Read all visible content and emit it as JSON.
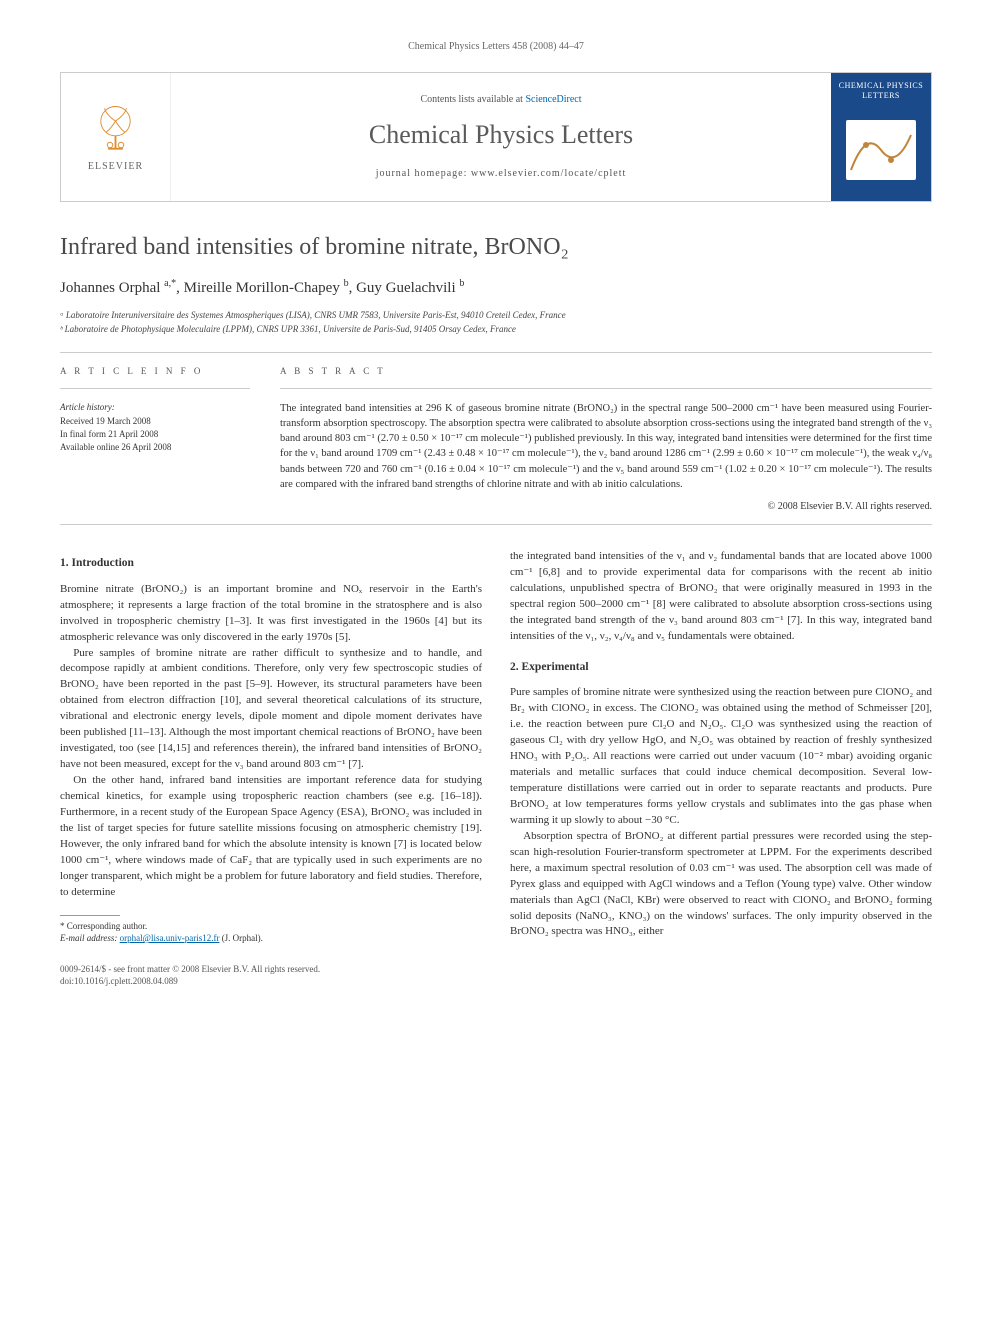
{
  "page_header": "Chemical Physics Letters 458 (2008) 44–47",
  "banner": {
    "publisher_label": "ELSEVIER",
    "contents_prefix": "Contents lists available at ",
    "contents_link": "ScienceDirect",
    "journal_name": "Chemical Physics Letters",
    "homepage_label": "journal homepage: www.elsevier.com/locate/cplett",
    "cover_title": "CHEMICAL PHYSICS LETTERS"
  },
  "article": {
    "title": "Infrared band intensities of bromine nitrate, BrONO₂",
    "authors_html": "Johannes Orphal <sup>a,*</sup>, Mireille Morillon-Chapey <sup>b</sup>, Guy Guelachvili <sup>b</sup>",
    "affiliations": [
      "ᵃ Laboratoire Interuniversitaire des Systemes Atmospheriques (LISA), CNRS UMR 7583, Universite Paris-Est, 94010 Creteil Cedex, France",
      "ᵇ Laboratoire de Photophysique Moleculaire (LPPM), CNRS UPR 3361, Universite de Paris-Sud, 91405 Orsay Cedex, France"
    ]
  },
  "info": {
    "heading": "A R T I C L E   I N F O",
    "history_label": "Article history:",
    "received": "Received 19 March 2008",
    "final_form": "In final form 21 April 2008",
    "online": "Available online 26 April 2008"
  },
  "abstract": {
    "heading": "A B S T R A C T",
    "text": "The integrated band intensities at 296 K of gaseous bromine nitrate (BrONO₂) in the spectral range 500–2000 cm⁻¹ have been measured using Fourier-transform absorption spectroscopy. The absorption spectra were calibrated to absolute absorption cross-sections using the integrated band strength of the ν₃ band around 803 cm⁻¹ (2.70 ± 0.50 × 10⁻¹⁷ cm molecule⁻¹) published previously. In this way, integrated band intensities were determined for the first time for the ν₁ band around 1709 cm⁻¹ (2.43 ± 0.48 × 10⁻¹⁷ cm molecule⁻¹), the ν₂ band around 1286 cm⁻¹ (2.99 ± 0.60 × 10⁻¹⁷ cm molecule⁻¹), the weak ν₄/ν₈ bands between 720 and 760 cm⁻¹ (0.16 ± 0.04 × 10⁻¹⁷ cm molecule⁻¹) and the ν₅ band around 559 cm⁻¹ (1.02 ± 0.20 × 10⁻¹⁷ cm molecule⁻¹). The results are compared with the infrared band strengths of chlorine nitrate and with ab initio calculations.",
    "copyright": "© 2008 Elsevier B.V. All rights reserved."
  },
  "sections": {
    "s1_head": "1. Introduction",
    "s1_p1": "Bromine nitrate (BrONO₂) is an important bromine and NOₓ reservoir in the Earth's atmosphere; it represents a large fraction of the total bromine in the stratosphere and is also involved in tropospheric chemistry [1–3]. It was first investigated in the 1960s [4] but its atmospheric relevance was only discovered in the early 1970s [5].",
    "s1_p2": "Pure samples of bromine nitrate are rather difficult to synthesize and to handle, and decompose rapidly at ambient conditions. Therefore, only very few spectroscopic studies of BrONO₂ have been reported in the past [5–9]. However, its structural parameters have been obtained from electron diffraction [10], and several theoretical calculations of its structure, vibrational and electronic energy levels, dipole moment and dipole moment derivates have been published [11–13]. Although the most important chemical reactions of BrONO₂ have been investigated, too (see [14,15] and references therein), the infrared band intensities of BrONO₂ have not been measured, except for the ν₃ band around 803 cm⁻¹ [7].",
    "s1_p3": "On the other hand, infrared band intensities are important reference data for studying chemical kinetics, for example using tropospheric reaction chambers (see e.g. [16–18]). Furthermore, in a recent study of the European Space Agency (ESA), BrONO₂ was included in the list of target species for future satellite missions focusing on atmospheric chemistry [19]. However, the only infrared band for which the absolute intensity is known [7] is located below 1000 cm⁻¹, where windows made of CaF₂ that are typically used in such experiments are no longer transparent, which might be a problem for future laboratory and field studies. Therefore, to determine",
    "s1_p3b": "the integrated band intensities of the ν₁ and ν₂ fundamental bands that are located above 1000 cm⁻¹ [6,8] and to provide experimental data for comparisons with the recent ab initio calculations, unpublished spectra of BrONO₂ that were originally measured in 1993 in the spectral region 500–2000 cm⁻¹ [8] were calibrated to absolute absorption cross-sections using the integrated band strength of the ν₃ band around 803 cm⁻¹ [7]. In this way, integrated band intensities of the ν₁, ν₂, ν₄/ν₈ and ν₅ fundamentals were obtained.",
    "s2_head": "2. Experimental",
    "s2_p1": "Pure samples of bromine nitrate were synthesized using the reaction between pure ClONO₂ and Br₂ with ClONO₂ in excess. The ClONO₂ was obtained using the method of Schmeisser [20], i.e. the reaction between pure Cl₂O and N₂O₅. Cl₂O was synthesized using the reaction of gaseous Cl₂ with dry yellow HgO, and N₂O₅ was obtained by reaction of freshly synthesized HNO₃ with P₂O₅. All reactions were carried out under vacuum (10⁻² mbar) avoiding organic materials and metallic surfaces that could induce chemical decomposition. Several low-temperature distillations were carried out in order to separate reactants and products. Pure BrONO₂ at low temperatures forms yellow crystals and sublimates into the gas phase when warming it up slowly to about −30 °C.",
    "s2_p2": "Absorption spectra of BrONO₂ at different partial pressures were recorded using the step-scan high-resolution Fourier-transform spectrometer at LPPM. For the experiments described here, a maximum spectral resolution of 0.03 cm⁻¹ was used. The absorption cell was made of Pyrex glass and equipped with AgCl windows and a Teflon (Young type) valve. Other window materials than AgCl (NaCl, KBr) were observed to react with ClONO₂ and BrONO₂ forming solid deposits (NaNO₃, KNO₃) on the windows' surfaces. The only impurity observed in the BrONO₂ spectra was HNO₃, either"
  },
  "footnote": {
    "corr": "* Corresponding author.",
    "email_label": "E-mail address:",
    "email": "orphal@lisa.univ-paris12.fr",
    "email_who": "(J. Orphal)."
  },
  "footer": {
    "left1": "0009-2614/$ - see front matter © 2008 Elsevier B.V. All rights reserved.",
    "left2": "doi:10.1016/j.cplett.2008.04.089"
  },
  "colors": {
    "link": "#0066aa",
    "banner_cover_bg": "#1a4a8a",
    "rule": "#cccccc",
    "text_muted": "#666666"
  }
}
